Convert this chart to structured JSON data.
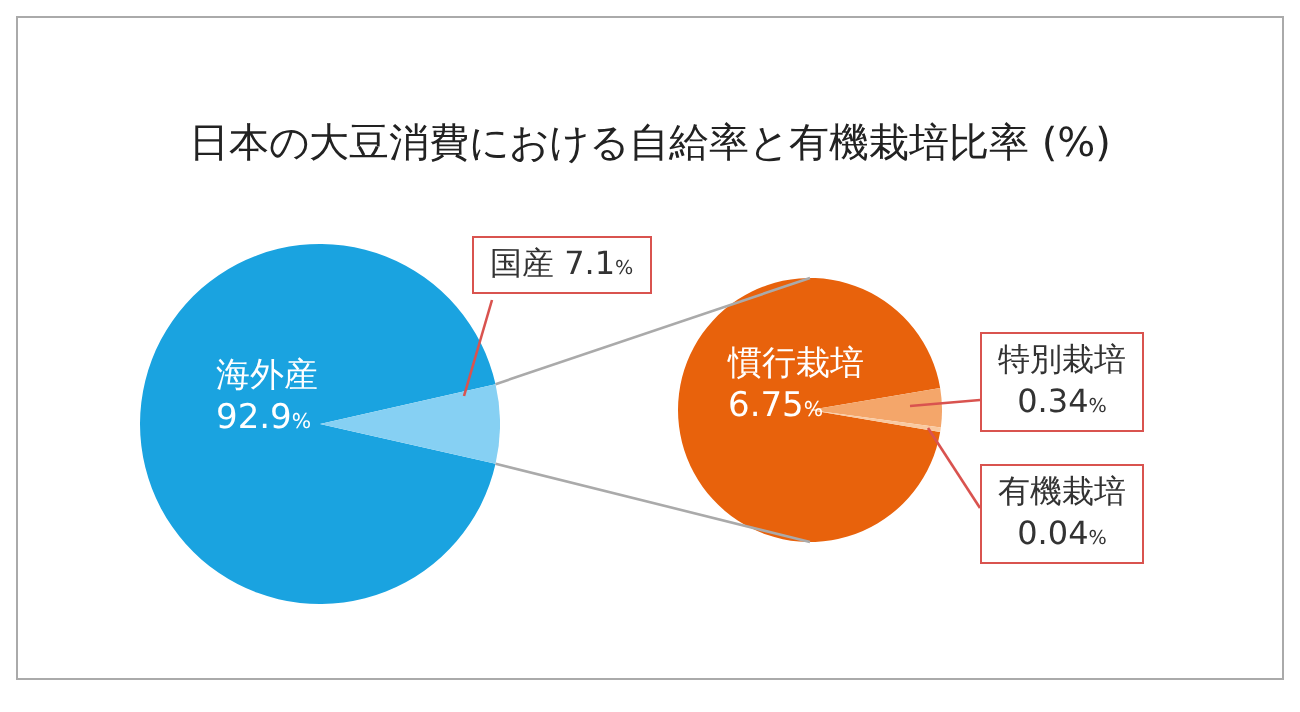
{
  "chart_data": [
    {
      "type": "pie",
      "title": "日本の大豆消費における自給率と有機栽培比率 (%)",
      "categories": [
        "海外産",
        "国産"
      ],
      "values": [
        92.9,
        7.1
      ],
      "colors": [
        "#1aa3e0",
        "#86d0f3"
      ],
      "value_labels": [
        "92.9%",
        "7.1%"
      ]
    },
    {
      "type": "pie",
      "categories": [
        "慣行栽培",
        "特別栽培",
        "有機栽培"
      ],
      "values": [
        6.75,
        0.34,
        0.04
      ],
      "colors": [
        "#e8620c",
        "#f4a66a",
        "#f9c9a0"
      ],
      "value_labels": [
        "6.75%",
        "0.34%",
        "0.04%"
      ]
    }
  ]
}
